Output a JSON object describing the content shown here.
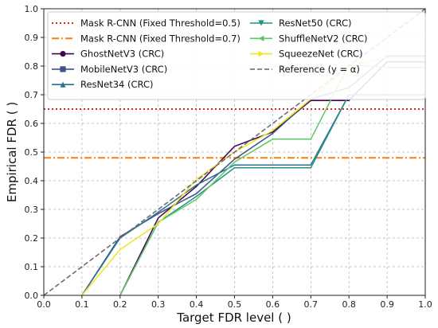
{
  "chart_data": {
    "type": "line",
    "xlabel": "Target FDR level (  )",
    "ylabel": "Empirical FDR (  )",
    "xlim": [
      0.0,
      1.0
    ],
    "ylim": [
      0.0,
      1.0
    ],
    "xticks": [
      0.0,
      0.1,
      0.2,
      0.3,
      0.4,
      0.5,
      0.6,
      0.7,
      0.8,
      0.9,
      1.0
    ],
    "yticks": [
      0.0,
      0.1,
      0.2,
      0.3,
      0.4,
      0.5,
      0.6,
      0.7,
      0.8,
      0.9,
      1.0
    ],
    "xtick_labels": [
      "0.0",
      "0.1",
      "0.2",
      "0.3",
      "0.4",
      "0.5",
      "0.6",
      "0.7",
      "0.8",
      "0.9",
      "1.0"
    ],
    "ytick_labels": [
      "0.0",
      "0.1",
      "0.2",
      "0.3",
      "0.4",
      "0.5",
      "0.6",
      "0.7",
      "0.8",
      "0.9",
      "1.0"
    ],
    "grid": true,
    "legend_position": "top-left",
    "series": [
      {
        "name": "Mask R-CNN (Fixed Threshold=0.5)",
        "color": "#d62728",
        "dash": "dotted",
        "marker": "none",
        "x": [
          0.0,
          1.0
        ],
        "y": [
          0.65,
          0.65
        ]
      },
      {
        "name": "Mask R-CNN (Fixed Threshold=0.7)",
        "color": "#ff7f0e",
        "dash": "dashdot",
        "marker": "none",
        "x": [
          0.0,
          1.0
        ],
        "y": [
          0.48,
          0.48
        ]
      },
      {
        "name": "GhostNetV3 (CRC)",
        "color": "#440154",
        "dash": "solid",
        "marker": "circle",
        "x": [
          0.2,
          0.3,
          0.4,
          0.5,
          0.6,
          0.7,
          0.8,
          0.9,
          1.0
        ],
        "y": [
          0.0,
          0.27,
          0.38,
          0.52,
          0.57,
          0.68,
          0.68,
          0.815,
          0.815
        ]
      },
      {
        "name": "MobileNetV3 (CRC)",
        "color": "#3b528b",
        "dash": "solid",
        "marker": "square",
        "x": [
          0.1,
          0.2,
          0.3,
          0.4,
          0.5,
          0.6,
          0.7,
          0.8,
          0.9,
          1.0
        ],
        "y": [
          0.0,
          0.205,
          0.285,
          0.355,
          0.475,
          0.565,
          0.685,
          0.725,
          0.835,
          0.835
        ]
      },
      {
        "name": "ResNet34 (CRC)",
        "color": "#2c728e",
        "dash": "solid",
        "marker": "triangle-up",
        "x": [
          0.1,
          0.2,
          0.3,
          0.4,
          0.5,
          0.6,
          0.7,
          0.8,
          0.9,
          1.0
        ],
        "y": [
          0.0,
          0.2,
          0.29,
          0.385,
          0.455,
          0.455,
          0.455,
          0.7,
          0.7,
          0.7
        ]
      },
      {
        "name": "ResNet50 (CRC)",
        "color": "#21918c",
        "dash": "solid",
        "marker": "triangle-down",
        "x": [
          0.2,
          0.3,
          0.4,
          0.5,
          0.6,
          0.7,
          0.8,
          0.9,
          1.0
        ],
        "y": [
          0.0,
          0.255,
          0.345,
          0.445,
          0.445,
          0.445,
          0.7,
          0.7,
          0.7
        ]
      },
      {
        "name": "ShuffleNetV2 (CRC)",
        "color": "#5ec962",
        "dash": "solid",
        "marker": "triangle-left",
        "x": [
          0.2,
          0.3,
          0.4,
          0.5,
          0.6,
          0.7,
          0.8,
          0.9,
          1.0
        ],
        "y": [
          0.0,
          0.255,
          0.335,
          0.465,
          0.545,
          0.545,
          0.805,
          0.795,
          0.795
        ]
      },
      {
        "name": "SqueezeNet (CRC)",
        "color": "#f0e422",
        "dash": "solid",
        "marker": "triangle-right",
        "x": [
          0.1,
          0.2,
          0.3,
          0.4,
          0.5,
          0.6,
          0.7,
          0.8,
          0.9,
          1.0
        ],
        "y": [
          0.0,
          0.16,
          0.25,
          0.405,
          0.5,
          0.575,
          0.685,
          0.8,
          0.83,
          0.83
        ]
      },
      {
        "name": "Reference (y = α)",
        "color": "#6e6e6e",
        "dash": "dashed",
        "marker": "none",
        "x": [
          0.0,
          1.0
        ],
        "y": [
          0.0,
          1.0
        ]
      }
    ]
  }
}
